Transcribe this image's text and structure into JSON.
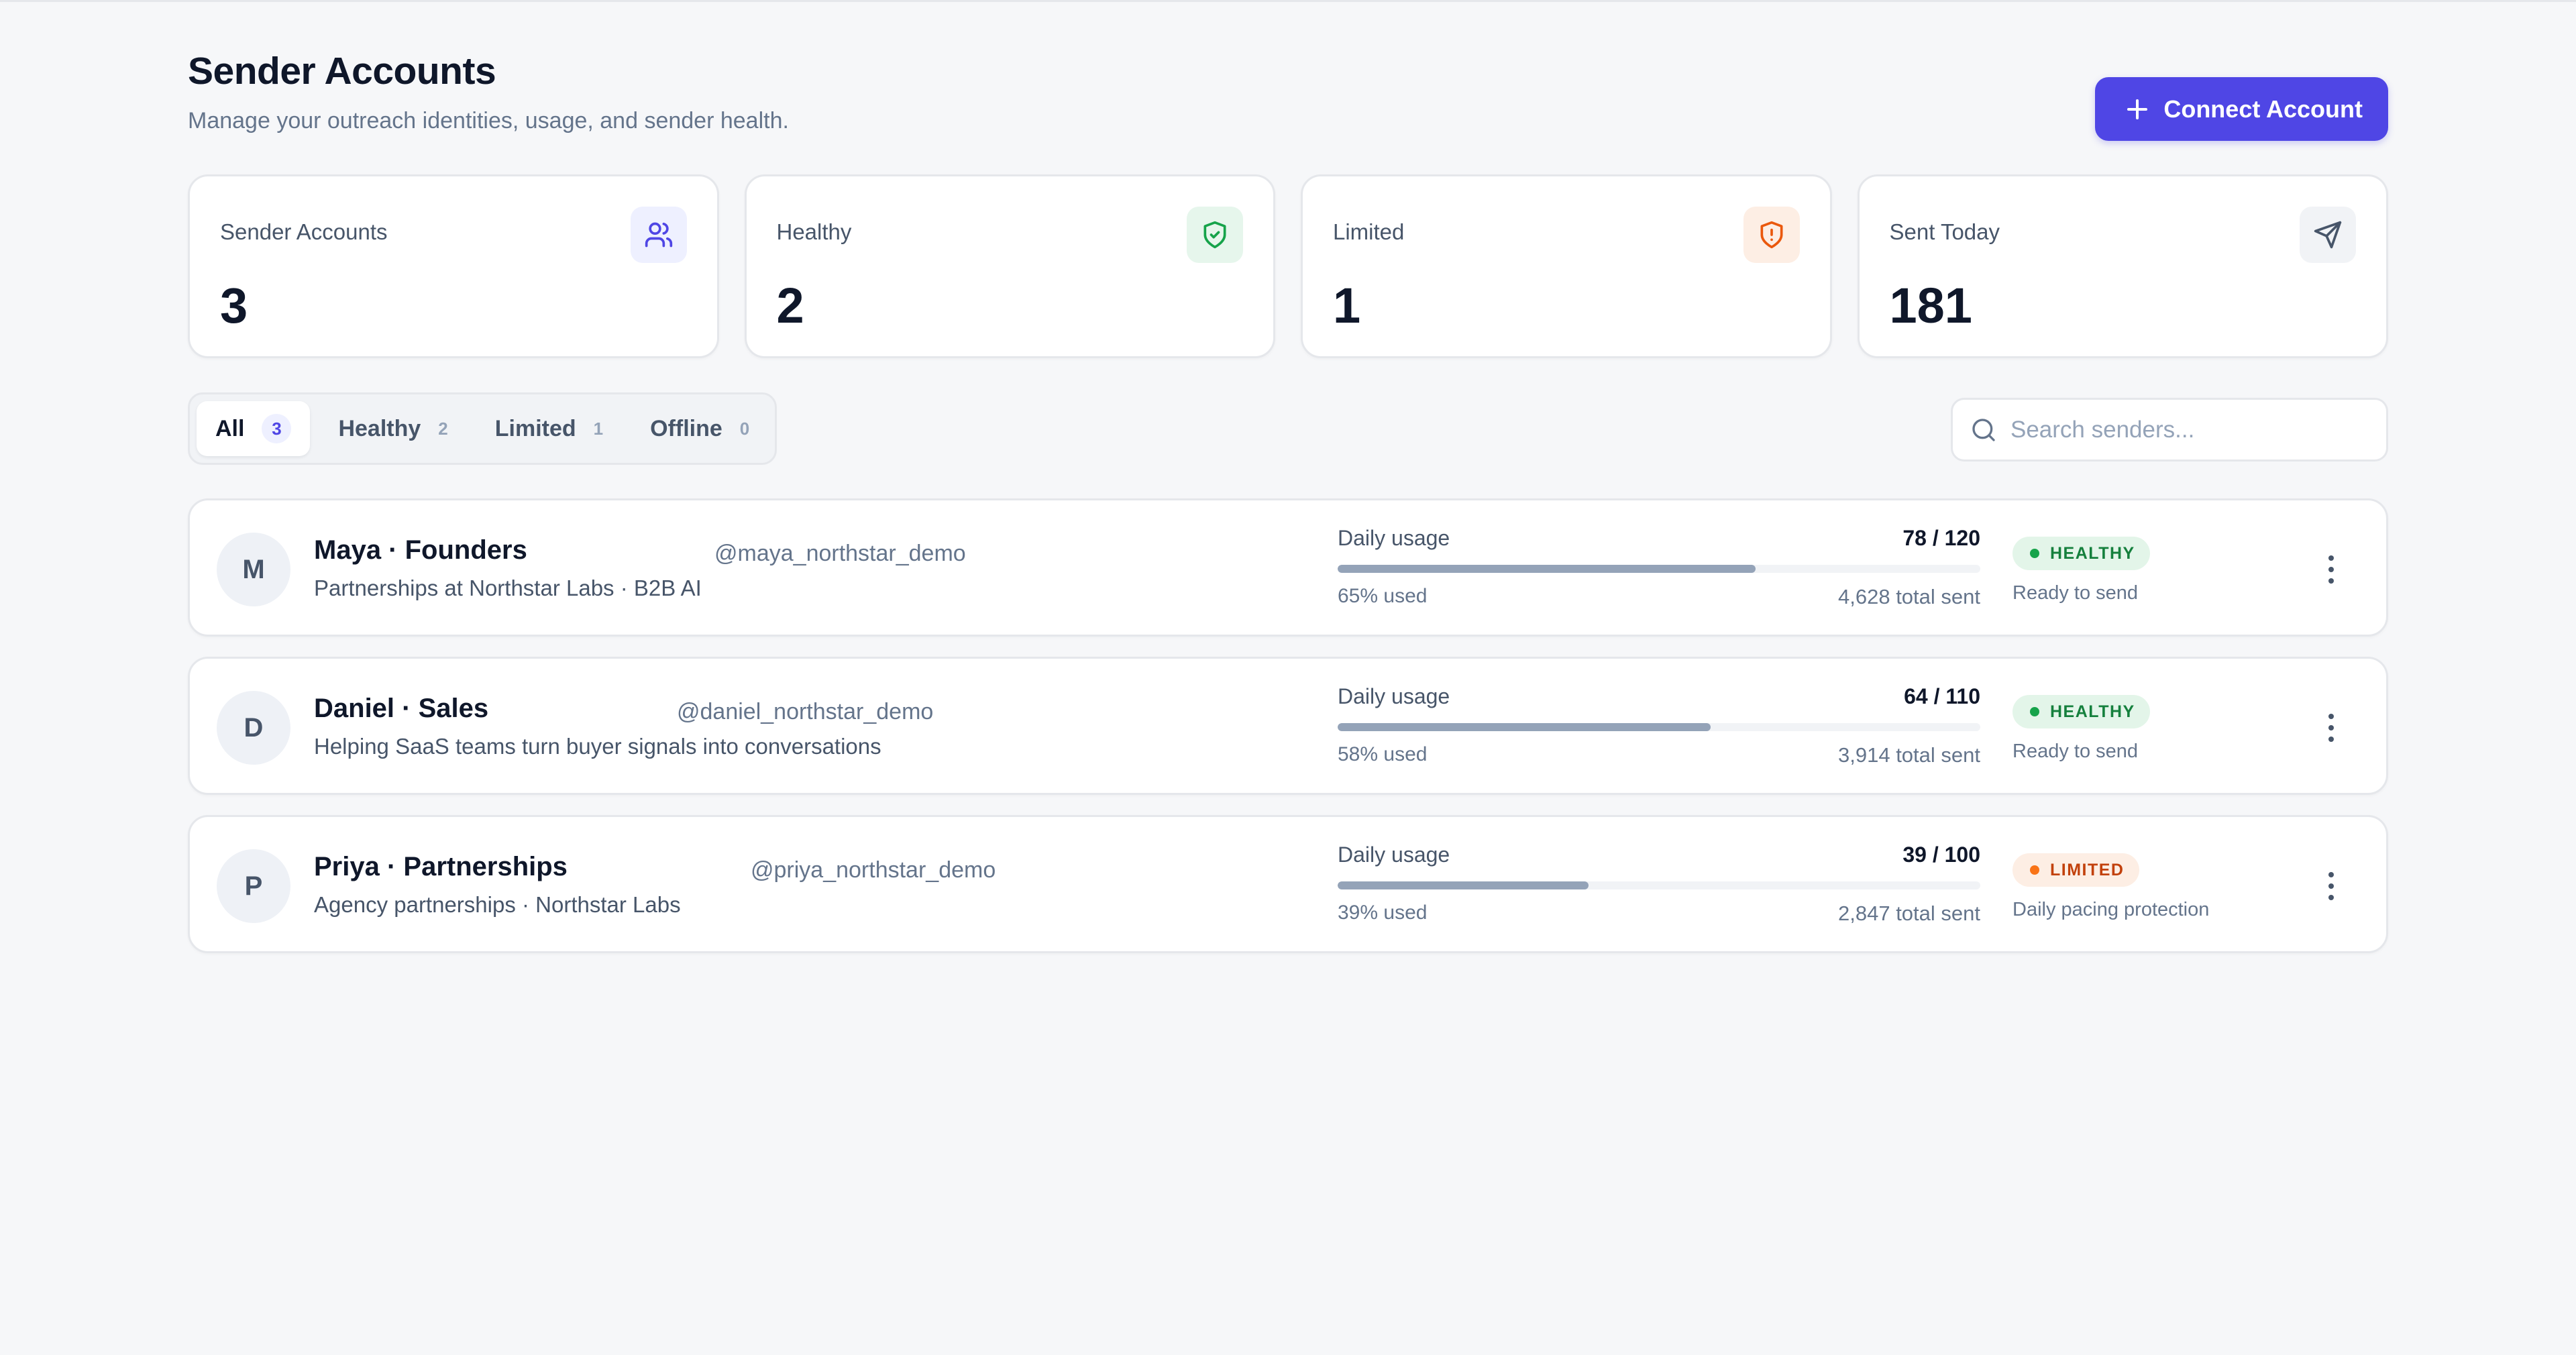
{
  "header": {
    "title": "Sender Accounts",
    "subtitle": "Manage your outreach identities, usage, and sender health.",
    "connect_label": "Connect Account"
  },
  "stats": [
    {
      "label": "Sender Accounts",
      "value": "3",
      "icon": "users-icon",
      "color": "#4f46e5"
    },
    {
      "label": "Healthy",
      "value": "2",
      "icon": "shield-check-icon",
      "color": "#16a34a"
    },
    {
      "label": "Limited",
      "value": "1",
      "icon": "shield-alert-icon",
      "color": "#ea580c"
    },
    {
      "label": "Sent Today",
      "value": "181",
      "icon": "send-icon",
      "color": "#475569"
    }
  ],
  "tabs": [
    {
      "label": "All",
      "count": "3",
      "active": true
    },
    {
      "label": "Healthy",
      "count": "2"
    },
    {
      "label": "Limited",
      "count": "1"
    },
    {
      "label": "Offline",
      "count": "0"
    }
  ],
  "search": {
    "placeholder": "Search senders..."
  },
  "senders": [
    {
      "initial": "M",
      "name": "Maya · Founders",
      "handle": "@maya_northstar_demo",
      "description": "Partnerships at Northstar Labs · B2B AI",
      "usage_label": "Daily usage",
      "usage_count": "78 / 120",
      "usage_fraction": 0.65,
      "usage_pct": "65% used",
      "total_sent": "4,628 total sent",
      "status": "HEALTHY",
      "status_note": "Ready to send"
    },
    {
      "initial": "D",
      "name": "Daniel · Sales",
      "handle": "@daniel_northstar_demo",
      "description": "Helping SaaS teams turn buyer signals into conversations",
      "usage_label": "Daily usage",
      "usage_count": "64 / 110",
      "usage_fraction": 0.58,
      "usage_pct": "58% used",
      "total_sent": "3,914 total sent",
      "status": "HEALTHY",
      "status_note": "Ready to send"
    },
    {
      "initial": "P",
      "name": "Priya · Partnerships",
      "handle": "@priya_northstar_demo",
      "description": "Agency partnerships · Northstar Labs",
      "usage_label": "Daily usage",
      "usage_count": "39 / 100",
      "usage_fraction": 0.39,
      "usage_pct": "39% used",
      "total_sent": "2,847 total sent",
      "status": "LIMITED",
      "status_note": "Daily pacing protection"
    }
  ]
}
